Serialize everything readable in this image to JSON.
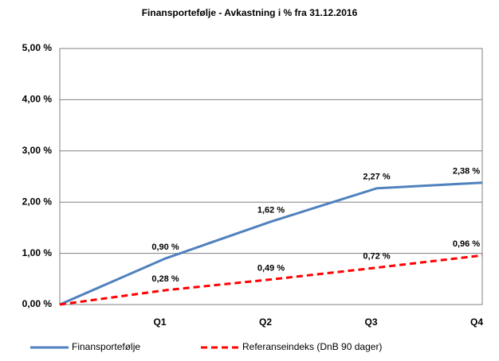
{
  "chart_data": {
    "type": "line",
    "title": "Finansportefølje - Avkastning i % fra 31.12.2016",
    "categories": [
      null,
      "Q1",
      "Q2",
      "Q3",
      "Q4"
    ],
    "series": [
      {
        "name": "Finansportefølje",
        "color": "#4f81bd",
        "dashed": false,
        "values": [
          0,
          0.9,
          1.62,
          2.27,
          2.38
        ],
        "value_labels": [
          null,
          "0,90 %",
          "1,62 %",
          "2,27 %",
          "2,38 %"
        ]
      },
      {
        "name": "Referanseindeks (DnB 90 dager)",
        "color": "#ff0000",
        "dashed": true,
        "values": [
          0,
          0.28,
          0.49,
          0.72,
          0.96
        ],
        "value_labels": [
          null,
          "0,28 %",
          "0,49 %",
          "0,72 %",
          "0,96 %"
        ]
      }
    ],
    "ylim": [
      0,
      5
    ],
    "yticks": [
      {
        "value": 0,
        "label": "0,00 %"
      },
      {
        "value": 1,
        "label": "1,00 %"
      },
      {
        "value": 2,
        "label": "2,00 %"
      },
      {
        "value": 3,
        "label": "3,00 %"
      },
      {
        "value": 4,
        "label": "4,00 %"
      },
      {
        "value": 5,
        "label": "5,00 %"
      }
    ],
    "grid": true
  }
}
